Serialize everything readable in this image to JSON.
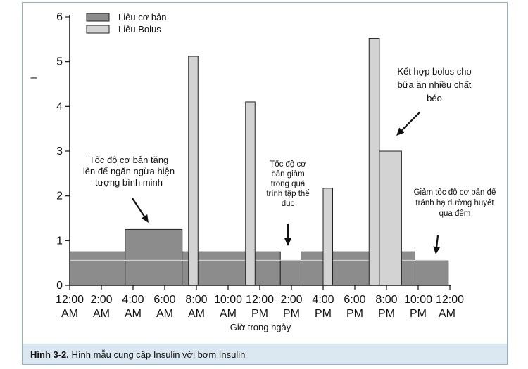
{
  "caption": {
    "label": "Hình 3-2.",
    "text": " Hình mẫu cung cấp Insulin với bơm Insulin"
  },
  "chart_data": {
    "type": "bar",
    "title": "",
    "xlabel": "Giờ trong ngày",
    "ylabel": "",
    "ylim": [
      0,
      6
    ],
    "xlim": [
      0,
      24
    ],
    "yticks": [
      "0",
      "1",
      "2",
      "3",
      "4",
      "5",
      "6"
    ],
    "xticks": [
      {
        "x": 0,
        "line1": "12:00",
        "line2": "AM"
      },
      {
        "x": 2,
        "line1": "2:00",
        "line2": "AM"
      },
      {
        "x": 4,
        "line1": "4:00",
        "line2": "AM"
      },
      {
        "x": 6,
        "line1": "6:00",
        "line2": "AM"
      },
      {
        "x": 8,
        "line1": "8:00",
        "line2": "AM"
      },
      {
        "x": 10,
        "line1": "10:00",
        "line2": "AM"
      },
      {
        "x": 12,
        "line1": "12:00",
        "line2": "PM"
      },
      {
        "x": 14,
        "line1": "2:00",
        "line2": "PM"
      },
      {
        "x": 16,
        "line1": "4:00",
        "line2": "PM"
      },
      {
        "x": 18,
        "line1": "6:00",
        "line2": "PM"
      },
      {
        "x": 20,
        "line1": "8:00",
        "line2": "PM"
      },
      {
        "x": 22,
        "line1": "10:00",
        "line2": "PM"
      },
      {
        "x": 24,
        "line1": "12:00",
        "line2": "AM"
      }
    ],
    "legend": [
      "Liêu cơ bản",
      "Liêu Bolus"
    ],
    "legend_position": "top-left",
    "colors": {
      "basal": "#8c8c8c",
      "bolus": "#d3d3d3",
      "axis": "#111111",
      "frame": "#8fb2c8",
      "caption_bg": "#dbe8f1"
    },
    "series": [
      {
        "name": "Liêu cơ bản",
        "segments": [
          {
            "x0": 0,
            "x1": 3.5,
            "y": 0.75
          },
          {
            "x0": 3.5,
            "x1": 7.1,
            "y": 1.25
          },
          {
            "x0": 7.1,
            "x1": 13.3,
            "y": 0.75
          },
          {
            "x0": 13.3,
            "x1": 14.6,
            "y": 0.55
          },
          {
            "x0": 14.6,
            "x1": 21.8,
            "y": 0.75
          },
          {
            "x0": 21.8,
            "x1": 23.9,
            "y": 0.55
          }
        ]
      },
      {
        "name": "Liêu Bolus",
        "segments": [
          {
            "x0": 7.5,
            "x1": 8.1,
            "y": 5.12
          },
          {
            "x0": 11.1,
            "x1": 11.7,
            "y": 4.1
          },
          {
            "x0": 16.0,
            "x1": 16.6,
            "y": 2.17
          },
          {
            "x0": 18.9,
            "x1": 19.55,
            "y": 5.52
          },
          {
            "x0": 19.55,
            "x1": 20.95,
            "y": 3.0
          }
        ]
      }
    ],
    "annotations": [
      {
        "lines": [
          "Tốc độ cơ bản tăng",
          "lên để ngăn ngừa hiện",
          "tượng bình minh"
        ]
      },
      {
        "lines": [
          "Tốc độ cơ",
          "bản giảm",
          "trong quá",
          "trình tập thể",
          "dục"
        ]
      },
      {
        "lines": [
          "Kết hợp bolus cho",
          "bữa ăn nhiều chất",
          "béo"
        ]
      },
      {
        "lines": [
          "Giảm tốc độ cơ bản để",
          "tránh hạ đường huyết",
          "qua đêm"
        ]
      }
    ],
    "axis_marker": "–"
  }
}
